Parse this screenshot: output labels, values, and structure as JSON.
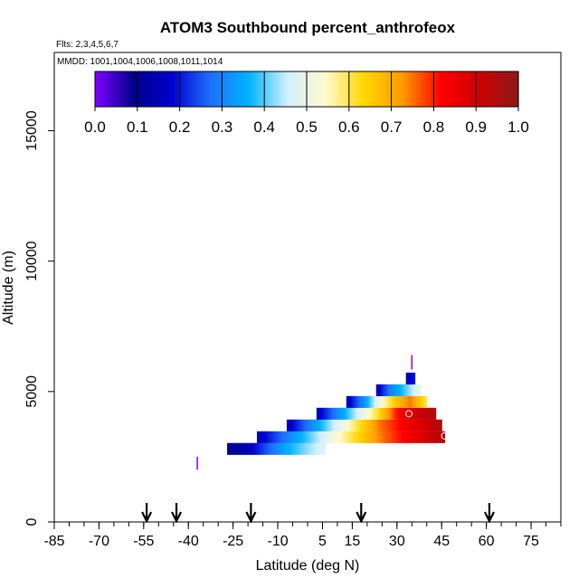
{
  "chart_data": {
    "type": "heatmap",
    "title": "ATOM3 Southbound percent_anthrofeox",
    "flights_label": "Flts: 2,3,4,5,6,7",
    "dates_label": "MMDD: 1001,1004,1006,1008,1011,1014",
    "xlabel": "Latitude (deg N)",
    "ylabel": "Altitude (m)",
    "xlim": [
      -85,
      85
    ],
    "ylim": [
      0,
      18000
    ],
    "x_ticks": [
      -85,
      -70,
      -55,
      -40,
      -25,
      -10,
      5,
      15,
      30,
      45,
      60,
      75
    ],
    "x_minor_step": 5,
    "y_ticks": [
      0,
      5000,
      10000,
      15000
    ],
    "colorbar": {
      "ticks": [
        0.0,
        0.1,
        0.2,
        0.3,
        0.4,
        0.5,
        0.6,
        0.7,
        0.8,
        0.9,
        1.0
      ],
      "tick_labels": [
        "0.0",
        "0.1",
        "0.2",
        "0.3",
        "0.4",
        "0.5",
        "0.6",
        "0.7",
        "0.8",
        "0.9",
        "1.0"
      ],
      "colors": [
        "#7f00ff",
        "#00008b",
        "#0000cd",
        "#1e6fff",
        "#00b4ff",
        "#d2f0ff",
        "#fffacd",
        "#ffd700",
        "#ff9900",
        "#ff0000",
        "#cc0000",
        "#8b1a1a"
      ],
      "range": [
        0,
        1
      ]
    },
    "arrows_latitudes": [
      -54,
      -44,
      -19,
      18,
      61
    ],
    "strips": [
      {
        "altitude": 2800,
        "lat_start": -27,
        "lat_end": 6,
        "values": [
          0.1,
          0.15,
          0.25,
          0.35,
          0.42,
          0.48
        ]
      },
      {
        "altitude": 3250,
        "lat_start": -17,
        "lat_end": 46,
        "values": [
          0.15,
          0.3,
          0.45,
          0.6,
          0.75,
          0.85,
          0.95
        ]
      },
      {
        "altitude": 3700,
        "lat_start": -7,
        "lat_end": 45,
        "values": [
          0.15,
          0.35,
          0.55,
          0.75,
          0.85,
          0.95
        ]
      },
      {
        "altitude": 4150,
        "lat_start": 3,
        "lat_end": 43,
        "values": [
          0.15,
          0.3,
          0.45,
          0.6,
          0.8,
          0.9,
          0.95
        ]
      },
      {
        "altitude": 4600,
        "lat_start": 13,
        "lat_end": 40,
        "values": [
          0.15,
          0.3,
          0.5,
          0.65,
          0.75,
          0.6
        ]
      },
      {
        "altitude": 5050,
        "lat_start": 23,
        "lat_end": 38,
        "values": [
          0.15,
          0.3,
          0.4,
          0.5
        ]
      },
      {
        "altitude": 5500,
        "lat_start": 33,
        "lat_end": 36,
        "values": [
          0.15,
          0.2
        ]
      }
    ],
    "lines": [
      {
        "lat": 35,
        "alt_from": 5850,
        "alt_to": 6400,
        "value": 0.0
      },
      {
        "lat": -37,
        "alt_from": 2000,
        "alt_to": 2500,
        "value": 0.0
      }
    ],
    "circle_markers": [
      {
        "lat": 34,
        "altitude": 4150
      },
      {
        "lat": 46,
        "altitude": 3300
      }
    ]
  }
}
